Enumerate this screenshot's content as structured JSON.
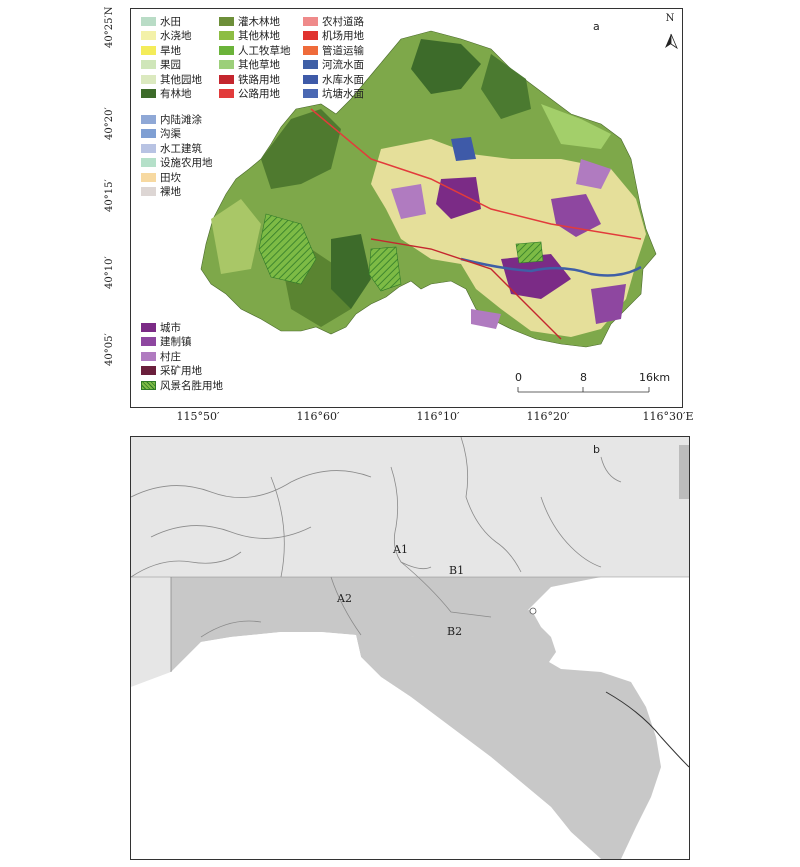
{
  "panel_a": {
    "label": "a",
    "north": "N",
    "lat_labels": [
      "40°25′N",
      "40°20′",
      "40°15′",
      "40°10′",
      "40°05′"
    ],
    "lon_labels": [
      "115°50′",
      "116°60′",
      "116°10′",
      "116°20′",
      "116°30′E"
    ],
    "scale": {
      "ticks": [
        "0",
        "8",
        "16km"
      ]
    },
    "legend_col1": [
      {
        "label": "水田",
        "color": "#b9dcc6"
      },
      {
        "label": "水浇地",
        "color": "#f3f1a9"
      },
      {
        "label": "旱地",
        "color": "#f4ec5a"
      },
      {
        "label": "果园",
        "color": "#cfe6b9"
      },
      {
        "label": "其他园地",
        "color": "#dbe9bf"
      },
      {
        "label": "有林地",
        "color": "#3d6b2a"
      }
    ],
    "legend_col2": [
      {
        "label": "灌木林地",
        "color": "#6d8f39"
      },
      {
        "label": "其他林地",
        "color": "#8dbd44"
      },
      {
        "label": "人工牧草地",
        "color": "#6bb33a"
      },
      {
        "label": "其他草地",
        "color": "#9ccf7a"
      },
      {
        "label": "铁路用地",
        "color": "#c4262e"
      },
      {
        "label": "公路用地",
        "color": "#e23b3b"
      }
    ],
    "legend_col3": [
      {
        "label": "农村道路",
        "color": "#ef8a8a"
      },
      {
        "label": "机场用地",
        "color": "#e0332f"
      },
      {
        "label": "管道运输",
        "color": "#ef6b3a"
      },
      {
        "label": "河流水面",
        "color": "#3f5fa6"
      },
      {
        "label": "水库水面",
        "color": "#3e5aa8"
      },
      {
        "label": "坑塘水面",
        "color": "#4a68b3"
      }
    ],
    "legend_col4": [
      {
        "label": "内陆滩涂",
        "color": "#8fa8d6"
      },
      {
        "label": "沟渠",
        "color": "#7f9fd3"
      },
      {
        "label": "水工建筑",
        "color": "#b8c3e3"
      },
      {
        "label": "设施农用地",
        "color": "#b5e0c9"
      },
      {
        "label": "田坎",
        "color": "#f7d9a1"
      },
      {
        "label": "裸地",
        "color": "#ddd6d4"
      }
    ],
    "legend_col5": [
      {
        "label": "城市",
        "color": "#7b2b86"
      },
      {
        "label": "建制镇",
        "color": "#8e47a0"
      },
      {
        "label": "村庄",
        "color": "#b07bc0"
      },
      {
        "label": "采矿用地",
        "color": "#6a1f3c"
      },
      {
        "label": "风景名胜用地",
        "color": "#7dbb45",
        "pattern": "hatch"
      }
    ]
  },
  "panel_b": {
    "label": "b",
    "regions": [
      "A1",
      "B1",
      "A2",
      "B2"
    ],
    "colors": {
      "light": "#e6e6e6",
      "dark": "#c8c8c8",
      "line": "#8a8a8a"
    }
  }
}
